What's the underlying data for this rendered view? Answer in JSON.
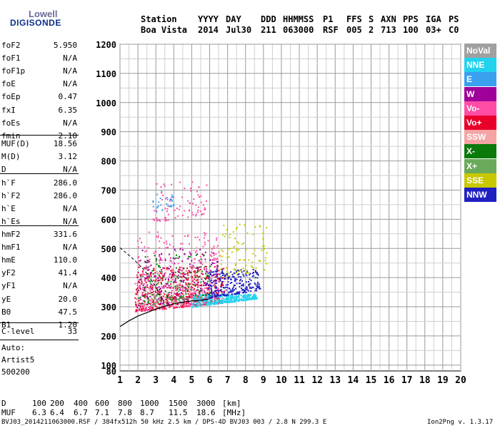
{
  "logo": {
    "line1": "Lowell",
    "line2": "DIGISONDE"
  },
  "header": {
    "labels": [
      "Station",
      "YYYY",
      "DAY",
      "DDD",
      "HHMMSS",
      "P1",
      "FFS",
      "S",
      "AXN",
      "PPS",
      "IGA",
      "PS"
    ],
    "values": [
      "Boa Vista",
      "2014",
      "Jul30",
      "211",
      "063000",
      "RSF",
      "005",
      "2",
      "713",
      "100",
      "03+",
      "C0"
    ]
  },
  "params_group1": [
    {
      "k": "foF2",
      "v": "5.950"
    },
    {
      "k": "foF1",
      "v": "N/A"
    },
    {
      "k": "foF1p",
      "v": "N/A"
    },
    {
      "k": "foE",
      "v": "N/A"
    },
    {
      "k": "foEp",
      "v": "0.47"
    },
    {
      "k": "fxI",
      "v": "6.35"
    },
    {
      "k": "foEs",
      "v": "N/A"
    },
    {
      "k": "fmin",
      "v": "2.10"
    }
  ],
  "params_group2": [
    {
      "k": "MUF(D)",
      "v": "18.56"
    },
    {
      "k": "M(D)",
      "v": "3.12"
    },
    {
      "k": "D",
      "v": "N/A"
    }
  ],
  "params_group3": [
    {
      "k": "h`F",
      "v": "286.0"
    },
    {
      "k": "h`F2",
      "v": "286.0"
    },
    {
      "k": "h`E",
      "v": "N/A"
    },
    {
      "k": "h`Es",
      "v": "N/A"
    }
  ],
  "params_group4": [
    {
      "k": "hmF2",
      "v": "331.6"
    },
    {
      "k": "hmF1",
      "v": "N/A"
    },
    {
      "k": "hmE",
      "v": "110.0"
    },
    {
      "k": "yF2",
      "v": "41.4"
    },
    {
      "k": "yF1",
      "v": "N/A"
    },
    {
      "k": "yE",
      "v": "20.0"
    },
    {
      "k": "B0",
      "v": "47.5"
    },
    {
      "k": "B1",
      "v": "1.20"
    }
  ],
  "clevel": {
    "k": "C-level",
    "v": "33"
  },
  "auto": [
    "Auto:",
    "Artist5",
    "500200"
  ],
  "legend": [
    {
      "label": "NoVal",
      "color": "#a0a0a0"
    },
    {
      "label": "NNE",
      "color": "#22d3ee"
    },
    {
      "label": "E",
      "color": "#3aa0f0"
    },
    {
      "label": "W",
      "color": "#a0009a"
    },
    {
      "label": "Vo-",
      "color": "#ff4da6"
    },
    {
      "label": "Vo+",
      "color": "#e8002a"
    },
    {
      "label": "SSW",
      "color": "#f5a3a3"
    },
    {
      "label": "X-",
      "color": "#0a7a0a"
    },
    {
      "label": "X+",
      "color": "#6aaa5a"
    },
    {
      "label": "SSE",
      "color": "#c8c800"
    },
    {
      "label": "NNW",
      "color": "#2020c0"
    }
  ],
  "mufd_table": {
    "d_label": "D",
    "d_values": [
      "100",
      "200",
      "400",
      "600",
      "800",
      "1000",
      "1500",
      "3000"
    ],
    "d_unit": "[km]",
    "muf_label": "MUF",
    "muf_values": [
      "6.3",
      "6.4",
      "6.7",
      "7.1",
      "7.8",
      "8.7",
      "11.5",
      "18.6"
    ],
    "muf_unit": "[MHz]"
  },
  "footer": {
    "left": "BVJ03_2014211063000.RSF / 384fx512h 50 kHz 2.5 km / DPS-4D BVJ03 003 / 2.8 N 299.3 E",
    "right": "Ion2Png v. 1.3.17"
  },
  "chart_data": {
    "type": "scatter",
    "x_range": [
      1,
      20
    ],
    "y_range": [
      80,
      1200
    ],
    "x_ticks": [
      1,
      2,
      3,
      4,
      5,
      6,
      7,
      8,
      9,
      10,
      11,
      12,
      13,
      14,
      15,
      16,
      17,
      18,
      19,
      20
    ],
    "y_ticks": [
      80,
      100,
      200,
      300,
      400,
      500,
      600,
      700,
      800,
      900,
      1000,
      1100,
      1200
    ],
    "grid": true,
    "legend_position": "right",
    "echo_clusters": [
      {
        "color": "#e8002a",
        "x": [
          1.8,
          6.8
        ],
        "y": [
          285,
          440
        ],
        "density": 520
      },
      {
        "color": "#ff4da6",
        "x": [
          1.8,
          6.5
        ],
        "y": [
          285,
          560
        ],
        "density": 320
      },
      {
        "color": "#a0009a",
        "x": [
          2.0,
          6.5
        ],
        "y": [
          300,
          500
        ],
        "density": 220
      },
      {
        "color": "#22d3ee",
        "x": [
          5.0,
          8.6
        ],
        "y": [
          300,
          345
        ],
        "density": 360
      },
      {
        "color": "#2020c0",
        "x": [
          5.8,
          8.8
        ],
        "y": [
          330,
          430
        ],
        "density": 260
      },
      {
        "color": "#0a7a0a",
        "x": [
          2.0,
          6.0
        ],
        "y": [
          310,
          480
        ],
        "density": 120
      },
      {
        "color": "#c8c800",
        "x": [
          6.5,
          9.2
        ],
        "y": [
          400,
          590
        ],
        "density": 90
      },
      {
        "color": "#6aaa5a",
        "x": [
          2.5,
          5.5
        ],
        "y": [
          300,
          420
        ],
        "density": 60
      },
      {
        "color": "#f5a3a3",
        "x": [
          2.2,
          7.0
        ],
        "y": [
          300,
          520
        ],
        "density": 60
      },
      {
        "color": "#ff4da6",
        "x": [
          2.8,
          5.8
        ],
        "y": [
          590,
          730
        ],
        "density": 80
      },
      {
        "color": "#3aa0f0",
        "x": [
          2.8,
          4.0
        ],
        "y": [
          620,
          700
        ],
        "density": 30
      }
    ],
    "profile_curve": {
      "x": [
        1.0,
        1.5,
        2.0,
        2.5,
        3.0,
        3.5,
        4.0,
        4.5,
        5.0,
        5.5,
        5.95
      ],
      "y": [
        232,
        252,
        268,
        280,
        292,
        302,
        310,
        316,
        320,
        322,
        326
      ]
    },
    "dashed_curve": {
      "x": [
        1.0,
        1.4,
        1.8,
        2.2,
        2.6,
        3.0,
        3.4
      ],
      "y": [
        502,
        482,
        460,
        436,
        406,
        368,
        318
      ]
    }
  }
}
